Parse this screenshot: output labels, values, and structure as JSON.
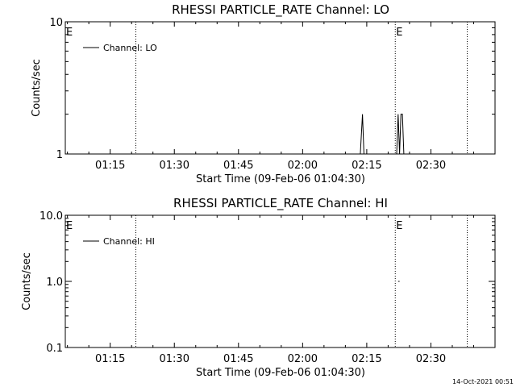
{
  "timestamp": "14-Oct-2021 00:51",
  "chart_data": [
    {
      "type": "line",
      "title": "RHESSI PARTICLE_RATE Channel: LO",
      "xlabel": "Start Time (09-Feb-06 01:04:30)",
      "ylabel": "Counts/sec",
      "y_scale": "log",
      "ylim": [
        1,
        10
      ],
      "y_ticks": [
        {
          "value": 1,
          "label": "1"
        },
        {
          "value": 10,
          "label": "10"
        }
      ],
      "x_start": "01:04:30",
      "xlim": [
        "01:04:30",
        "02:45:00"
      ],
      "x_ticks": [
        "01:15",
        "01:30",
        "01:45",
        "02:00",
        "02:15",
        "02:30"
      ],
      "grid": false,
      "legend": {
        "position": "top-left",
        "entries": [
          "Channel: LO"
        ]
      },
      "markers": [
        {
          "time": "01:04:30",
          "label": "E"
        },
        {
          "time": "01:21:00",
          "label": ""
        },
        {
          "time": "02:21:40",
          "label": "E"
        },
        {
          "time": "02:38:30",
          "label": ""
        }
      ],
      "series": [
        {
          "name": "Channel: LO",
          "segments": [
            {
              "x": [
                "02:13:30",
                "02:14:00",
                "02:14:20"
              ],
              "y": [
                1,
                2,
                1
              ]
            },
            {
              "x": [
                "02:22:00",
                "02:22:20",
                "02:22:40",
                "02:23:00",
                "02:23:20",
                "02:23:40"
              ],
              "y": [
                1,
                2,
                1,
                2,
                2,
                1
              ]
            }
          ]
        }
      ]
    },
    {
      "type": "line",
      "title": "RHESSI PARTICLE_RATE Channel: HI",
      "xlabel": "Start Time (09-Feb-06 01:04:30)",
      "ylabel": "Counts/sec",
      "y_scale": "log",
      "ylim": [
        0.1,
        10
      ],
      "y_ticks": [
        {
          "value": 0.1,
          "label": "0.1"
        },
        {
          "value": 1,
          "label": "1.0"
        },
        {
          "value": 10,
          "label": "10.0"
        }
      ],
      "x_start": "01:04:30",
      "xlim": [
        "01:04:30",
        "02:45:00"
      ],
      "x_ticks": [
        "01:15",
        "01:30",
        "01:45",
        "02:00",
        "02:15",
        "02:30"
      ],
      "grid": false,
      "legend": {
        "position": "top-left",
        "entries": [
          "Channel: HI"
        ]
      },
      "markers": [
        {
          "time": "01:04:30",
          "label": "E"
        },
        {
          "time": "01:21:00",
          "label": ""
        },
        {
          "time": "02:21:40",
          "label": "E"
        },
        {
          "time": "02:38:30",
          "label": ""
        }
      ],
      "series": [
        {
          "name": "Channel: HI",
          "segments": [
            {
              "x": [
                "02:22:20",
                "02:22:40"
              ],
              "y": [
                1,
                1
              ]
            }
          ]
        }
      ]
    }
  ]
}
